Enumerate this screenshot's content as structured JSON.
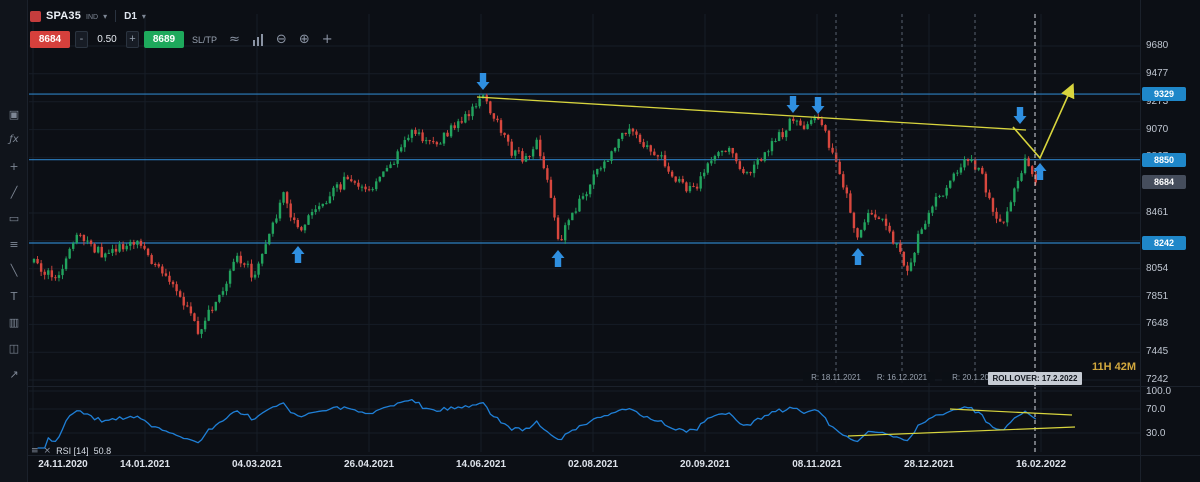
{
  "colors": {
    "bg": "#0c0f15",
    "grid": "#161d26",
    "up": "#22a35e",
    "down": "#d8473e",
    "level_line": "#2d7fc0",
    "level_badge": "#1f87c9",
    "current_badge": "#454d5c",
    "rsi_line": "#1f7fd6",
    "trend_yellow": "#d8d53e",
    "arrow_blue": "#2f8fe0",
    "countdown": "#d2a83e",
    "sell": "#d5403c",
    "buy": "#1ea95c"
  },
  "toolbar": {
    "symbol": "SPA35",
    "symbol_type": "IND",
    "timeframe": "D1",
    "sell_price": "8684",
    "minus": "-",
    "spread": "0.50",
    "plus": "+",
    "buy_price": "8689",
    "sltp": "SL/TP"
  },
  "icons": {
    "caret": "▾",
    "wave": "≈",
    "zoom_out": "⊖",
    "zoom_in": "⊕",
    "move": "+"
  },
  "sidebar": {
    "icons": [
      {
        "name": "snapshot-icon",
        "glyph": "▣"
      },
      {
        "name": "function-icon",
        "glyph": "ƒx"
      },
      {
        "name": "add-instrument-icon",
        "glyph": "+"
      },
      {
        "name": "trendline-tool-icon",
        "glyph": "╱"
      },
      {
        "name": "shapes-tool-icon",
        "glyph": "▭"
      },
      {
        "name": "list-icon",
        "glyph": "≡"
      },
      {
        "name": "brush-tool-icon",
        "glyph": "╲"
      },
      {
        "name": "text-tool-icon",
        "glyph": "T"
      },
      {
        "name": "indicator-icon",
        "glyph": "▥"
      },
      {
        "name": "objects-icon",
        "glyph": "◫"
      },
      {
        "name": "share-icon",
        "glyph": "↗"
      }
    ]
  },
  "price_axis": {
    "ticks": [
      "9680",
      "9477",
      "9273",
      "9070",
      "8867",
      "8461",
      "8258",
      "8054",
      "7851",
      "7648",
      "7445",
      "7242"
    ]
  },
  "levels": [
    {
      "label": "9329",
      "price": 9329
    },
    {
      "label": "8850",
      "price": 8850
    },
    {
      "label": "8242",
      "price": 8242
    }
  ],
  "current_price": {
    "label": "8684",
    "price": 8684
  },
  "time_axis": {
    "labels": [
      "24.11.2020",
      "14.01.2021",
      "04.03.2021",
      "26.04.2021",
      "14.06.2021",
      "02.08.2021",
      "20.09.2021",
      "08.11.2021",
      "28.12.2021",
      "16.02.2022"
    ]
  },
  "rollovers": [
    {
      "label": "R: 18.11.2021",
      "x": 836
    },
    {
      "label": "R: 16.12.2021",
      "x": 902
    },
    {
      "label": "R: 20.1.2022",
      "x": 975
    }
  ],
  "rollover_current": {
    "label": "ROLLOVER: 17.2.2022",
    "x": 1035
  },
  "countdown": "11H 42M",
  "rsi_panel": {
    "menu_icon": "≡",
    "close_icon": "×",
    "label": "RSI [14]",
    "value": "50.8",
    "ticks": [
      {
        "label": "100.0",
        "v": 100
      },
      {
        "label": "70.0",
        "v": 70
      },
      {
        "label": "30.0",
        "v": 30
      }
    ]
  },
  "chart_data": {
    "type": "candlestick",
    "title": "SPA35 D1 with RSI(14)",
    "x_range": [
      "24.11.2020",
      "16.02.2022"
    ],
    "y_range": [
      7242,
      9680
    ],
    "candle_count": 282,
    "last_close": 8684,
    "support_resistance": [
      9329,
      8850,
      8242
    ],
    "indicator": {
      "name": "RSI",
      "period": 14,
      "last": 50.8
    },
    "price_anchors": [
      [
        0,
        8100
      ],
      [
        6,
        7980
      ],
      [
        12,
        8300
      ],
      [
        20,
        8150
      ],
      [
        28,
        8250
      ],
      [
        34,
        8100
      ],
      [
        40,
        7900
      ],
      [
        46,
        7590
      ],
      [
        52,
        7850
      ],
      [
        57,
        8160
      ],
      [
        62,
        7990
      ],
      [
        70,
        8600
      ],
      [
        74,
        8330
      ],
      [
        82,
        8560
      ],
      [
        88,
        8720
      ],
      [
        94,
        8610
      ],
      [
        100,
        8790
      ],
      [
        106,
        9060
      ],
      [
        112,
        8950
      ],
      [
        118,
        9100
      ],
      [
        122,
        9190
      ],
      [
        126,
        9330
      ],
      [
        131,
        9050
      ],
      [
        134,
        8900
      ],
      [
        138,
        8860
      ],
      [
        141,
        9000
      ],
      [
        144,
        8700
      ],
      [
        147,
        8240
      ],
      [
        152,
        8500
      ],
      [
        158,
        8750
      ],
      [
        163,
        8950
      ],
      [
        167,
        9080
      ],
      [
        172,
        8950
      ],
      [
        176,
        8850
      ],
      [
        180,
        8700
      ],
      [
        185,
        8620
      ],
      [
        190,
        8850
      ],
      [
        195,
        8900
      ],
      [
        200,
        8750
      ],
      [
        205,
        8900
      ],
      [
        210,
        9050
      ],
      [
        213,
        9160
      ],
      [
        216,
        9080
      ],
      [
        220,
        9150
      ],
      [
        224,
        8900
      ],
      [
        228,
        8600
      ],
      [
        231,
        8260
      ],
      [
        235,
        8480
      ],
      [
        238,
        8400
      ],
      [
        241,
        8270
      ],
      [
        245,
        8060
      ],
      [
        249,
        8350
      ],
      [
        253,
        8550
      ],
      [
        257,
        8700
      ],
      [
        261,
        8850
      ],
      [
        265,
        8800
      ],
      [
        269,
        8480
      ],
      [
        272,
        8400
      ],
      [
        275,
        8650
      ],
      [
        278,
        8850
      ],
      [
        280,
        8750
      ],
      [
        281,
        8684
      ]
    ],
    "annotations": {
      "down_arrows": [
        [
          483,
          90
        ],
        [
          793,
          113
        ],
        [
          818,
          114
        ],
        [
          1020,
          124
        ]
      ],
      "up_arrows": [
        [
          298,
          246
        ],
        [
          558,
          250
        ],
        [
          858,
          248
        ],
        [
          1040,
          163
        ]
      ],
      "trendline": [
        [
          477,
          97
        ],
        [
          1026,
          130
        ]
      ],
      "forecast": [
        [
          1013,
          127
        ],
        [
          1040,
          158
        ],
        [
          1071,
          89
        ]
      ],
      "rsi_trend_upper": [
        [
          950,
          409
        ],
        [
          1072,
          415
        ]
      ],
      "rsi_trend_lower": [
        [
          848,
          436
        ],
        [
          1075,
          427
        ]
      ]
    }
  }
}
